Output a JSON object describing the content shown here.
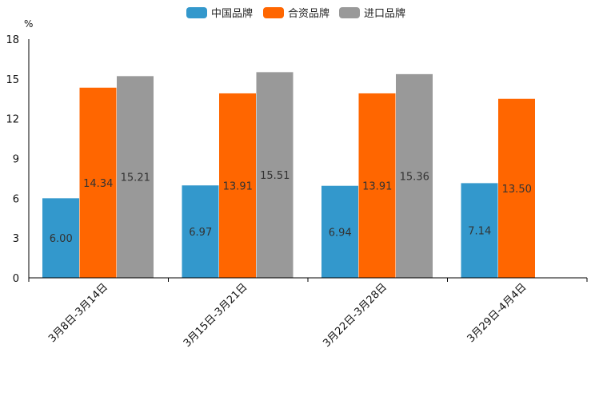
{
  "chart_data": {
    "type": "bar",
    "title": "",
    "ylabel": "%",
    "xlabel": "",
    "ylim": [
      0,
      18
    ],
    "yticks": [
      0,
      3,
      6,
      9,
      12,
      15,
      18
    ],
    "categories": [
      "3月8日-3月14日",
      "3月15日-3月21日",
      "3月22日-3月28日",
      "3月29日-4月4日"
    ],
    "series": [
      {
        "name": "中国品牌",
        "color": "#3398cc",
        "values": [
          6.0,
          6.97,
          6.94,
          7.14
        ],
        "labels": [
          "6.00",
          "6.97",
          "6.94",
          "7.14"
        ]
      },
      {
        "name": "合资品牌",
        "color": "#ff6600",
        "values": [
          14.34,
          13.91,
          13.91,
          13.5
        ],
        "labels": [
          "14.34",
          "13.91",
          "13.91",
          "13.50"
        ]
      },
      {
        "name": "进口品牌",
        "color": "#999999",
        "values": [
          15.21,
          15.51,
          15.36,
          null
        ],
        "labels": [
          "15.21",
          "15.51",
          "15.36",
          ""
        ]
      }
    ],
    "legend": "top-center",
    "grid": false
  }
}
